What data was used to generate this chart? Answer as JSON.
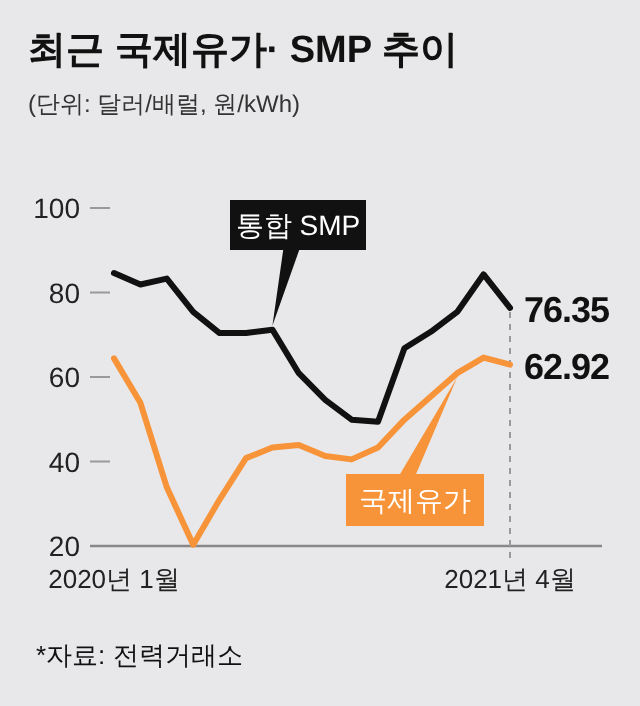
{
  "chart_data": {
    "type": "line",
    "title": "최근 국제유가· SMP 추이",
    "subtitle": "(단위: 달러/배럴, 원/kWh)",
    "annotations": [
      "*자료: 전력거래소"
    ],
    "categories": [
      "2020년 1월",
      null,
      null,
      null,
      null,
      null,
      null,
      null,
      null,
      null,
      null,
      null,
      null,
      null,
      null,
      "2021년 4월"
    ],
    "series": [
      {
        "name": "통합 SMP",
        "color": "#111111",
        "values": [
          84.6,
          81.9,
          83.3,
          75.4,
          70.4,
          70.4,
          71.2,
          60.9,
          54.6,
          49.9,
          49.4,
          66.8,
          70.7,
          75.4,
          84.3,
          76.35
        ],
        "value_labels": [
          null,
          null,
          null,
          null,
          null,
          null,
          null,
          null,
          null,
          null,
          null,
          null,
          null,
          null,
          null,
          "76.35"
        ]
      },
      {
        "name": "국제유가",
        "color": "#f7943a",
        "values": [
          64.4,
          53.9,
          33.9,
          20.3,
          31.0,
          40.8,
          43.3,
          43.9,
          41.3,
          40.5,
          43.3,
          49.9,
          55.4,
          60.9,
          64.6,
          62.92
        ],
        "value_labels": [
          null,
          null,
          null,
          null,
          null,
          null,
          null,
          null,
          null,
          null,
          null,
          null,
          null,
          null,
          null,
          "62.92"
        ]
      }
    ],
    "ylim": [
      20,
      100
    ],
    "yticks": [
      20,
      40,
      60,
      80,
      100
    ],
    "ref_lines": [
      {
        "axis": "x",
        "value": "2021년 4월",
        "color": "#999999",
        "line_style": "dashed"
      }
    ]
  }
}
